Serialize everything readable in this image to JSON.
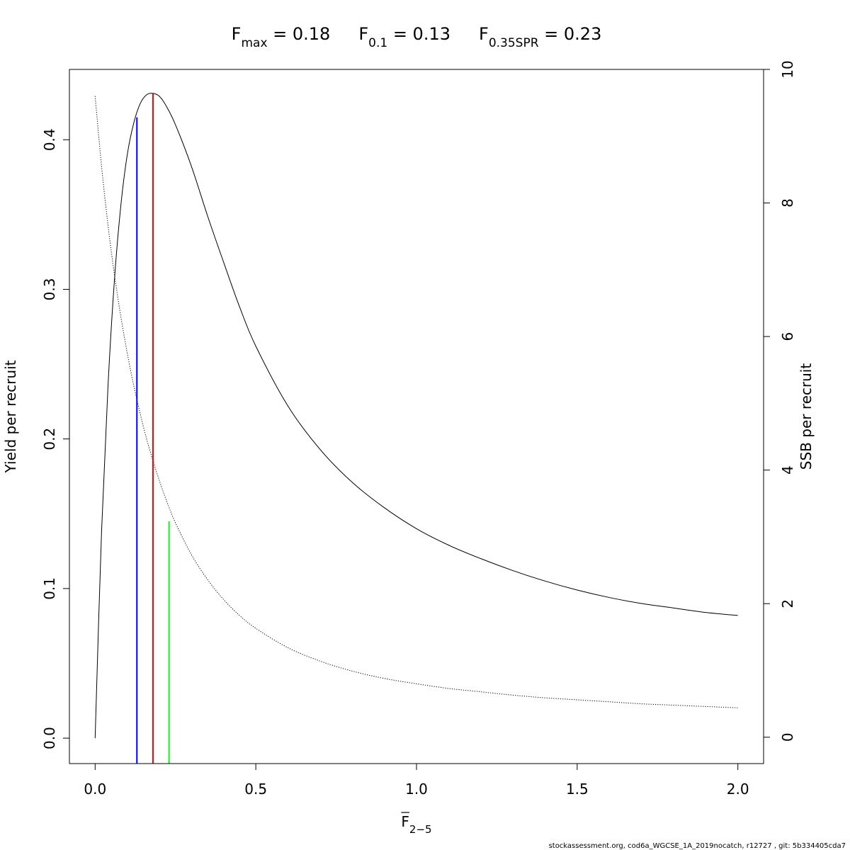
{
  "chart_data": {
    "type": "line",
    "title": {
      "items": [
        {
          "main": "F",
          "sub": "max",
          "rest": " = 0.18"
        },
        {
          "main": "F",
          "sub": "0.1",
          "rest": " = 0.13"
        },
        {
          "main": "F",
          "sub": "0.35SPR",
          "rest": " = 0.23"
        }
      ]
    },
    "xlabel": {
      "main": "F",
      "sub": "2−5",
      "overline": true
    },
    "ylabel": "Yield per recruit",
    "y2label": "SSB per recruit",
    "xlim": [
      -0.08,
      2.08
    ],
    "ylim": [
      -0.017,
      0.447
    ],
    "y2lim": [
      -0.395,
      10.0
    ],
    "xticks": [
      "0.0",
      "0.5",
      "1.0",
      "1.5",
      "2.0"
    ],
    "yticks": [
      "0.0",
      "0.1",
      "0.2",
      "0.3",
      "0.4"
    ],
    "y2ticks": [
      "0",
      "2",
      "4",
      "6",
      "8",
      "10"
    ],
    "grid": false,
    "series": [
      {
        "axis": "left",
        "style": "solid",
        "color": "#000000",
        "x": [
          0,
          0.02,
          0.04,
          0.06,
          0.08,
          0.1,
          0.12,
          0.14,
          0.16,
          0.18,
          0.2,
          0.22,
          0.25,
          0.3,
          0.35,
          0.4,
          0.45,
          0.5,
          0.6,
          0.7,
          0.8,
          0.9,
          1.0,
          1.1,
          1.2,
          1.3,
          1.4,
          1.5,
          1.6,
          1.7,
          1.8,
          1.9,
          2.0
        ],
        "y": [
          0.0,
          0.138,
          0.235,
          0.306,
          0.356,
          0.39,
          0.411,
          0.424,
          0.43,
          0.431,
          0.429,
          0.423,
          0.41,
          0.382,
          0.349,
          0.318,
          0.288,
          0.262,
          0.222,
          0.193,
          0.171,
          0.154,
          0.14,
          0.129,
          0.12,
          0.112,
          0.105,
          0.099,
          0.094,
          0.09,
          0.087,
          0.084,
          0.082
        ]
      },
      {
        "axis": "right",
        "style": "dotted",
        "color": "#000000",
        "x": [
          0,
          0.02,
          0.04,
          0.06,
          0.08,
          0.1,
          0.12,
          0.14,
          0.16,
          0.18,
          0.2,
          0.22,
          0.25,
          0.3,
          0.35,
          0.4,
          0.45,
          0.5,
          0.6,
          0.7,
          0.8,
          0.9,
          1.0,
          1.1,
          1.2,
          1.3,
          1.4,
          1.5,
          1.6,
          1.7,
          1.8,
          1.9,
          2.0
        ],
        "y": [
          9.6,
          8.55,
          7.67,
          6.93,
          6.3,
          5.75,
          5.27,
          4.85,
          4.47,
          4.14,
          3.84,
          3.57,
          3.21,
          2.73,
          2.36,
          2.06,
          1.82,
          1.63,
          1.34,
          1.14,
          0.99,
          0.88,
          0.8,
          0.73,
          0.68,
          0.63,
          0.59,
          0.56,
          0.53,
          0.5,
          0.48,
          0.46,
          0.44
        ]
      }
    ],
    "reference_lines": [
      {
        "name": "F0.1",
        "x": 0.13,
        "ymax": 0.415,
        "color": "#0000ff"
      },
      {
        "name": "Fmax",
        "x": 0.18,
        "ymax": 0.431,
        "color": "#ff0000"
      },
      {
        "name": "F0.35SPR",
        "x": 0.23,
        "ymax": 0.145,
        "color": "#00ff00"
      }
    ]
  },
  "footer": "stockassessment.org, cod6a_WGCSE_1A_2019nocatch, r12727 , git: 5b334405cda7"
}
